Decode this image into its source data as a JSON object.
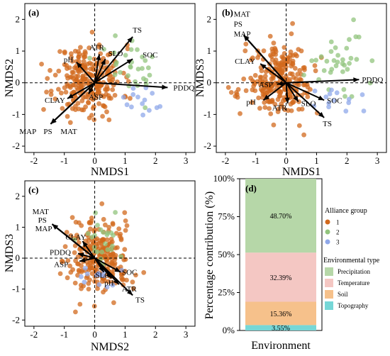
{
  "figure": {
    "colors": {
      "group1": "#d2691e",
      "group2": "#92c47d",
      "group3": "#8fa8ea",
      "precipitation": "#b6d7a8",
      "temperature": "#f4c7c3",
      "soil": "#f6c18b",
      "topography": "#76d7d7"
    }
  },
  "chart_data": [
    {
      "panel": "(a)",
      "type": "scatter",
      "xlabel": "NMDS1",
      "ylabel": "NMDS2",
      "xlim": [
        -2.3,
        3.3
      ],
      "ylim": [
        -2.2,
        2.5
      ],
      "xticks": [
        -2,
        -1,
        0,
        1,
        2,
        3
      ],
      "yticks": [
        -2,
        -1,
        0,
        1,
        2
      ],
      "clouds": [
        {
          "group": "1",
          "cx": -0.2,
          "cy": 0.1,
          "sx": 0.55,
          "sy": 0.55,
          "n": 260,
          "seed": 11
        },
        {
          "group": "2",
          "cx": 1.3,
          "cy": 0.6,
          "sx": 0.55,
          "sy": 0.45,
          "n": 30,
          "seed": 12
        },
        {
          "group": "3",
          "cx": 1.6,
          "cy": -0.6,
          "sx": 0.4,
          "sy": 0.3,
          "n": 14,
          "seed": 13
        }
      ],
      "vectors": [
        {
          "label": "TS",
          "x": 1.25,
          "y": 1.45
        },
        {
          "label": "SOC",
          "x": 1.25,
          "y": 0.75
        },
        {
          "label": "PDDQ",
          "x": 2.4,
          "y": -0.15
        },
        {
          "label": "ATR",
          "x": 0.15,
          "y": 0.9
        },
        {
          "label": "SLO",
          "x": 0.35,
          "y": 0.75
        },
        {
          "label": "pH",
          "x": -0.6,
          "y": 0.65
        },
        {
          "label": "CLAY",
          "x": -0.9,
          "y": -0.5
        },
        {
          "label": "ASP",
          "x": -0.2,
          "y": -0.35
        },
        {
          "label": "MAP",
          "x": -1.45,
          "y": -1.3
        },
        {
          "label": "PS",
          "x": -1.45,
          "y": -1.3
        },
        {
          "label": "MAT",
          "x": -1.45,
          "y": -1.3
        }
      ],
      "vector_text": [
        "TS",
        "SOC",
        "PDDQ",
        "ATR",
        "SLO",
        "pH",
        "CLAY",
        "ASP",
        "MAP",
        "PS",
        "MAT"
      ]
    },
    {
      "panel": "(b)",
      "type": "scatter",
      "xlabel": "NMDS1",
      "ylabel": "NMDS3",
      "xlim": [
        -2.3,
        3.3
      ],
      "ylim": [
        -2.2,
        2.5
      ],
      "xticks": [
        -2,
        -1,
        0,
        1,
        2,
        3
      ],
      "yticks": [
        -2,
        -1,
        0,
        1,
        2
      ],
      "clouds": [
        {
          "group": "1",
          "cx": -0.2,
          "cy": 0.05,
          "sx": 0.55,
          "sy": 0.55,
          "n": 260,
          "seed": 21
        },
        {
          "group": "2",
          "cx": 1.6,
          "cy": 0.6,
          "sx": 0.55,
          "sy": 0.55,
          "n": 35,
          "seed": 22
        },
        {
          "group": "3",
          "cx": 1.9,
          "cy": -0.55,
          "sx": 0.45,
          "sy": 0.2,
          "n": 14,
          "seed": 23
        }
      ],
      "vectors": [
        {
          "label": "MAT",
          "x": -1.4,
          "y": 1.5
        },
        {
          "label": "PS",
          "x": -1.4,
          "y": 1.5
        },
        {
          "label": "MAP",
          "x": -1.4,
          "y": 1.5
        },
        {
          "label": "CLAY",
          "x": -0.85,
          "y": 0.6
        },
        {
          "label": "PDDQ",
          "x": 2.4,
          "y": 0.1
        },
        {
          "label": "ASP",
          "x": -0.3,
          "y": -0.05
        },
        {
          "label": "pH",
          "x": -0.75,
          "y": -0.55
        },
        {
          "label": "SOC",
          "x": 1.25,
          "y": -0.55
        },
        {
          "label": "ATR",
          "x": 0.05,
          "y": -0.65
        },
        {
          "label": "SLO",
          "x": 0.4,
          "y": -0.6
        },
        {
          "label": "TS",
          "x": 1.25,
          "y": -1.1
        }
      ],
      "vector_text": [
        "MAT",
        "PS",
        "MAP",
        "CLAY",
        "PDDQ",
        "ASP",
        "pH",
        "SOC",
        "ATR",
        "SLO",
        "TS"
      ]
    },
    {
      "panel": "(c)",
      "type": "scatter",
      "xlabel": "NMDS2",
      "ylabel": "NMDS3",
      "xlim": [
        -2.3,
        3.3
      ],
      "ylim": [
        -2.2,
        2.5
      ],
      "xticks": [
        -2,
        -1,
        0,
        1,
        2,
        3
      ],
      "yticks": [
        -2,
        -1,
        0,
        1,
        2
      ],
      "clouds": [
        {
          "group": "1",
          "cx": 0.1,
          "cy": 0.0,
          "sx": 0.55,
          "sy": 0.6,
          "n": 260,
          "seed": 31
        },
        {
          "group": "2",
          "cx": 0.3,
          "cy": 0.6,
          "sx": 0.35,
          "sy": 0.45,
          "n": 25,
          "seed": 32
        },
        {
          "group": "3",
          "cx": 0.2,
          "cy": -0.7,
          "sx": 0.35,
          "sy": 0.2,
          "n": 14,
          "seed": 33
        }
      ],
      "vectors": [
        {
          "label": "MAT",
          "x": -1.4,
          "y": 1.1
        },
        {
          "label": "PS",
          "x": -1.4,
          "y": 1.1
        },
        {
          "label": "MAP",
          "x": -1.4,
          "y": 1.1
        },
        {
          "label": "CLAY",
          "x": -0.4,
          "y": 0.55
        },
        {
          "label": "PDDQ",
          "x": -0.55,
          "y": 0.15
        },
        {
          "label": "ASP",
          "x": -0.5,
          "y": -0.1
        },
        {
          "label": "SLO",
          "x": 0.3,
          "y": -0.45
        },
        {
          "label": "SOC",
          "x": 0.85,
          "y": -0.45
        },
        {
          "label": "pH",
          "x": 0.55,
          "y": -0.65
        },
        {
          "label": "ATR",
          "x": 0.8,
          "y": -0.85
        },
        {
          "label": "TS",
          "x": 1.25,
          "y": -1.2
        }
      ],
      "vector_text": [
        "MAT",
        "PS",
        "MAP",
        "CLAY",
        "PDDQ",
        "ASP",
        "SLO",
        "SOC",
        "pH",
        "ATR",
        "TS"
      ]
    },
    {
      "panel": "(d)",
      "type": "bar",
      "xlabel": "Environment",
      "ylabel": "Percentage contribution (%)",
      "ylim": [
        0,
        100
      ],
      "yticks": [
        "0%",
        "25%",
        "50%",
        "75%",
        "100%"
      ],
      "categories": [
        "Environment"
      ],
      "segments": [
        {
          "name": "Topography",
          "value": 3.55,
          "label": "3.55%"
        },
        {
          "name": "Soil",
          "value": 15.36,
          "label": "15.36%"
        },
        {
          "name": "Temperature",
          "value": 32.39,
          "label": "32.39%"
        },
        {
          "name": "Precipitation",
          "value": 48.7,
          "label": "48.70%"
        }
      ],
      "legend_alliance_title": "Alliance group",
      "legend_alliance": [
        "1",
        "2",
        "3"
      ],
      "legend_env_title": "Environmental type",
      "legend_env": [
        "Precipitation",
        "Temperature",
        "Soil",
        "Topography"
      ]
    }
  ]
}
